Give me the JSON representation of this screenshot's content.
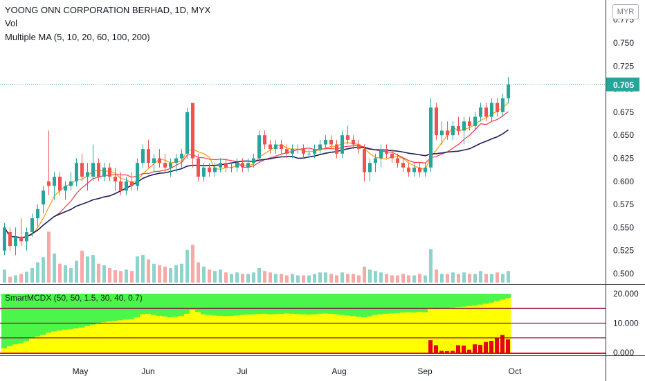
{
  "header": {
    "title": "YOONG ONN CORPORATION BERHAD, 1D, MYX",
    "vol_label": "Vol",
    "ma_label": "Multiple MA (5, 10, 20, 60, 100, 200)",
    "currency": "MYR"
  },
  "indicator": {
    "label": "SmartMCDX (50, 50, 1.5, 30, 40, 0.7)"
  },
  "colors": {
    "up": "#26a69a",
    "down": "#ef5350",
    "vol_up": "#8fd3cd",
    "vol_down": "#f7a9a7",
    "ma5": "#ff9800",
    "ma10": "#f23645",
    "ma20": "#1b1f5c",
    "last_price": "#26a69a",
    "green": "#4cf54a",
    "yellow": "#ffff00",
    "red": "#e8001a",
    "level_line": "#8b0a3c"
  },
  "chart_data": [
    {
      "type": "candlestick",
      "title": "YOONG ONN CORPORATION BERHAD, 1D, MYX",
      "x_tick_labels": [
        "May",
        "Jun",
        "Jul",
        "Aug",
        "Sep",
        "Oct"
      ],
      "y_tick_labels": [
        "0.775",
        "0.750",
        "0.725",
        "0.700",
        "0.675",
        "0.650",
        "0.625",
        "0.600",
        "0.575",
        "0.550",
        "0.525",
        "0.500"
      ],
      "ylim": [
        0.495,
        0.78
      ],
      "last_price": "0.705",
      "ohlc": [
        [
          0.525,
          0.555,
          0.52,
          0.55
        ],
        [
          0.545,
          0.55,
          0.525,
          0.53
        ],
        [
          0.53,
          0.55,
          0.52,
          0.54
        ],
        [
          0.54,
          0.56,
          0.53,
          0.535
        ],
        [
          0.535,
          0.55,
          0.525,
          0.545
        ],
        [
          0.545,
          0.565,
          0.54,
          0.56
        ],
        [
          0.56,
          0.575,
          0.55,
          0.57
        ],
        [
          0.575,
          0.595,
          0.565,
          0.59
        ],
        [
          0.6,
          0.655,
          0.585,
          0.595
        ],
        [
          0.595,
          0.61,
          0.58,
          0.605
        ],
        [
          0.605,
          0.61,
          0.585,
          0.59
        ],
        [
          0.59,
          0.6,
          0.58,
          0.595
        ],
        [
          0.595,
          0.61,
          0.59,
          0.6
        ],
        [
          0.6,
          0.625,
          0.595,
          0.62
        ],
        [
          0.62,
          0.63,
          0.6,
          0.605
        ],
        [
          0.605,
          0.62,
          0.59,
          0.61
        ],
        [
          0.605,
          0.64,
          0.6,
          0.62
        ],
        [
          0.62,
          0.625,
          0.6,
          0.605
        ],
        [
          0.605,
          0.62,
          0.6,
          0.615
        ],
        [
          0.615,
          0.62,
          0.6,
          0.605
        ],
        [
          0.605,
          0.615,
          0.59,
          0.6
        ],
        [
          0.6,
          0.61,
          0.585,
          0.59
        ],
        [
          0.59,
          0.605,
          0.585,
          0.6
        ],
        [
          0.6,
          0.61,
          0.59,
          0.595
        ],
        [
          0.595,
          0.625,
          0.59,
          0.62
        ],
        [
          0.62,
          0.64,
          0.615,
          0.635
        ],
        [
          0.635,
          0.645,
          0.615,
          0.62
        ],
        [
          0.62,
          0.63,
          0.61,
          0.625
        ],
        [
          0.625,
          0.635,
          0.615,
          0.62
        ],
        [
          0.62,
          0.63,
          0.61,
          0.615
        ],
        [
          0.615,
          0.625,
          0.605,
          0.62
        ],
        [
          0.62,
          0.63,
          0.61,
          0.625
        ],
        [
          0.625,
          0.635,
          0.615,
          0.63
        ],
        [
          0.63,
          0.68,
          0.625,
          0.675
        ],
        [
          0.685,
          0.685,
          0.615,
          0.625
        ],
        [
          0.625,
          0.63,
          0.6,
          0.605
        ],
        [
          0.605,
          0.62,
          0.6,
          0.615
        ],
        [
          0.615,
          0.62,
          0.605,
          0.61
        ],
        [
          0.61,
          0.62,
          0.605,
          0.615
        ],
        [
          0.615,
          0.625,
          0.61,
          0.62
        ],
        [
          0.62,
          0.625,
          0.61,
          0.615
        ],
        [
          0.615,
          0.62,
          0.61,
          0.615
        ],
        [
          0.615,
          0.625,
          0.61,
          0.62
        ],
        [
          0.62,
          0.625,
          0.61,
          0.615
        ],
        [
          0.615,
          0.625,
          0.61,
          0.62
        ],
        [
          0.62,
          0.63,
          0.615,
          0.625
        ],
        [
          0.625,
          0.655,
          0.62,
          0.65
        ],
        [
          0.65,
          0.655,
          0.635,
          0.64
        ],
        [
          0.64,
          0.645,
          0.63,
          0.635
        ],
        [
          0.635,
          0.645,
          0.63,
          0.64
        ],
        [
          0.64,
          0.645,
          0.63,
          0.635
        ],
        [
          0.635,
          0.64,
          0.625,
          0.63
        ],
        [
          0.63,
          0.64,
          0.625,
          0.635
        ],
        [
          0.635,
          0.64,
          0.63,
          0.635
        ],
        [
          0.635,
          0.64,
          0.625,
          0.63
        ],
        [
          0.63,
          0.635,
          0.625,
          0.63
        ],
        [
          0.63,
          0.64,
          0.625,
          0.635
        ],
        [
          0.635,
          0.645,
          0.63,
          0.64
        ],
        [
          0.64,
          0.65,
          0.635,
          0.645
        ],
        [
          0.645,
          0.65,
          0.635,
          0.64
        ],
        [
          0.64,
          0.645,
          0.625,
          0.63
        ],
        [
          0.63,
          0.655,
          0.625,
          0.65
        ],
        [
          0.65,
          0.66,
          0.64,
          0.645
        ],
        [
          0.645,
          0.65,
          0.635,
          0.64
        ],
        [
          0.64,
          0.645,
          0.63,
          0.635
        ],
        [
          0.635,
          0.64,
          0.6,
          0.61
        ],
        [
          0.61,
          0.625,
          0.6,
          0.62
        ],
        [
          0.62,
          0.63,
          0.61,
          0.625
        ],
        [
          0.625,
          0.64,
          0.615,
          0.635
        ],
        [
          0.635,
          0.64,
          0.625,
          0.63
        ],
        [
          0.63,
          0.635,
          0.62,
          0.625
        ],
        [
          0.625,
          0.63,
          0.615,
          0.62
        ],
        [
          0.62,
          0.625,
          0.61,
          0.615
        ],
        [
          0.615,
          0.62,
          0.605,
          0.61
        ],
        [
          0.61,
          0.62,
          0.605,
          0.615
        ],
        [
          0.615,
          0.62,
          0.605,
          0.61
        ],
        [
          0.61,
          0.62,
          0.605,
          0.615
        ],
        [
          0.615,
          0.69,
          0.61,
          0.68
        ],
        [
          0.68,
          0.685,
          0.645,
          0.65
        ],
        [
          0.65,
          0.665,
          0.64,
          0.655
        ],
        [
          0.655,
          0.665,
          0.645,
          0.65
        ],
        [
          0.65,
          0.665,
          0.645,
          0.66
        ],
        [
          0.66,
          0.67,
          0.65,
          0.655
        ],
        [
          0.655,
          0.67,
          0.64,
          0.665
        ],
        [
          0.665,
          0.67,
          0.655,
          0.66
        ],
        [
          0.66,
          0.675,
          0.655,
          0.67
        ],
        [
          0.67,
          0.685,
          0.665,
          0.68
        ],
        [
          0.68,
          0.685,
          0.665,
          0.67
        ],
        [
          0.67,
          0.69,
          0.665,
          0.685
        ],
        [
          0.685,
          0.69,
          0.67,
          0.675
        ],
        [
          0.675,
          0.695,
          0.67,
          0.69
        ],
        [
          0.69,
          0.713,
          0.685,
          0.705
        ]
      ],
      "volume": [
        18,
        8,
        10,
        12,
        15,
        20,
        28,
        35,
        70,
        40,
        26,
        24,
        20,
        30,
        44,
        36,
        38,
        26,
        24,
        20,
        17,
        16,
        18,
        16,
        36,
        38,
        32,
        26,
        24,
        22,
        20,
        24,
        26,
        45,
        52,
        28,
        22,
        18,
        16,
        18,
        14,
        12,
        14,
        12,
        12,
        14,
        20,
        16,
        14,
        12,
        12,
        10,
        12,
        10,
        10,
        10,
        12,
        14,
        14,
        12,
        10,
        14,
        12,
        12,
        10,
        22,
        18,
        16,
        14,
        12,
        10,
        10,
        12,
        10,
        10,
        12,
        10,
        46,
        18,
        12,
        12,
        14,
        12,
        14,
        12,
        12,
        16,
        12,
        12,
        14,
        12,
        16
      ],
      "ma_series": [
        {
          "name": "MA 5",
          "color": "#ff9800"
        },
        {
          "name": "MA 10",
          "color": "#f23645"
        },
        {
          "name": "MA 20",
          "color": "#1b1f5c"
        }
      ]
    },
    {
      "type": "stacked-bar",
      "title": "SmartMCDX (50, 50, 1.5, 30, 40, 0.7)",
      "y_tick_labels": [
        "20.000",
        "10.000",
        "0.000"
      ],
      "ylim": [
        -0.5,
        20
      ],
      "levels": [
        15,
        10,
        5
      ],
      "yellow": [
        1.5,
        2.2,
        2.8,
        3.2,
        4.0,
        4.8,
        5.5,
        6.0,
        6.8,
        7.2,
        7.5,
        7.8,
        8.0,
        8.2,
        8.5,
        9.0,
        9.5,
        10.0,
        10.3,
        10.6,
        10.8,
        11.0,
        11.2,
        11.4,
        12.0,
        13.0,
        13.2,
        12.8,
        12.5,
        12.3,
        12.0,
        12.2,
        12.5,
        13.2,
        14.5,
        13.8,
        13.0,
        12.8,
        12.6,
        12.5,
        12.4,
        12.5,
        12.6,
        12.8,
        12.9,
        13.0,
        13.1,
        13.2,
        13.0,
        13.1,
        13.2,
        13.3,
        13.2,
        13.1,
        13.0,
        12.9,
        13.0,
        13.2,
        13.3,
        13.2,
        13.0,
        12.8,
        12.6,
        12.4,
        12.2,
        12.0,
        12.3,
        12.8,
        13.0,
        13.2,
        13.3,
        13.4,
        13.6,
        13.7,
        13.6,
        13.8,
        13.7,
        15.0,
        14.8,
        14.9,
        15.1,
        15.3,
        15.5,
        15.6,
        15.8,
        16.0,
        16.3,
        16.6,
        17.0,
        17.5,
        18.0,
        18.5
      ],
      "red": [
        0,
        0,
        0,
        0,
        0,
        0,
        0,
        0,
        0,
        0,
        0,
        0,
        0,
        0,
        0,
        0,
        0,
        0,
        0,
        0,
        0,
        0,
        0,
        0,
        0,
        0,
        0,
        0,
        0,
        0,
        0,
        0,
        0,
        0,
        0,
        0,
        0,
        0,
        0,
        0,
        0,
        0,
        0,
        0,
        0,
        0,
        0,
        0,
        0,
        0,
        0,
        0,
        0,
        0,
        0,
        0,
        0,
        0,
        0,
        0,
        0,
        0,
        0,
        0,
        0,
        0,
        0,
        0,
        0,
        0,
        0,
        0,
        0,
        0,
        0,
        0,
        0,
        4.2,
        2.5,
        0.6,
        0.5,
        0.6,
        2.5,
        2.4,
        1.0,
        2.8,
        2.6,
        3.6,
        4.0,
        5.0,
        6.0,
        4.5,
        5.5,
        9.2
      ],
      "total": 20
    }
  ]
}
